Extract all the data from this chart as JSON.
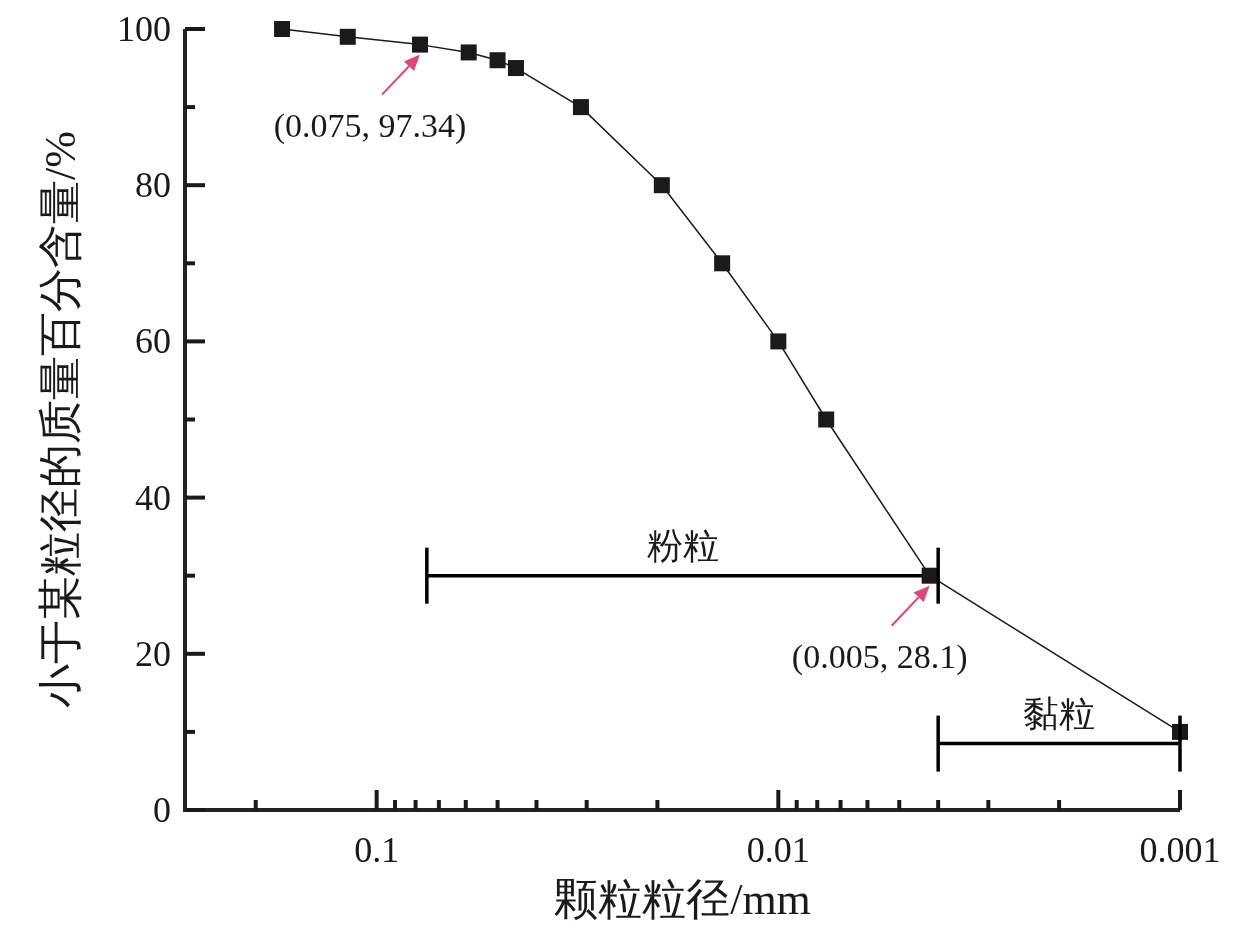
{
  "chart_data": {
    "type": "line",
    "xlabel": "颗粒粒径/mm",
    "ylabel": "小于某粒径的质量百分含量/%",
    "series": [
      {
        "x": [
          0.172,
          0.118,
          0.078,
          0.059,
          0.05,
          0.045,
          0.031,
          0.0195,
          0.0138,
          0.01,
          0.0076,
          0.0042,
          0.001
        ],
        "values": [
          100,
          99,
          98,
          97,
          96,
          95,
          90,
          80,
          70,
          60,
          50,
          30,
          10
        ],
        "color": "#1a1a1a",
        "marker": "square"
      },
      {
        "name": "粉粒",
        "x": [
          0.075,
          0.004
        ],
        "values": [
          30,
          30
        ],
        "color": "#000000",
        "marker": "none"
      },
      {
        "name": "黏粒",
        "x": [
          0.004,
          0.001
        ],
        "values": [
          8.5,
          8.5
        ],
        "color": "#000000",
        "marker": "none"
      }
    ],
    "line_style": "solid",
    "log": "x",
    "xlim": [
      0.3,
      0.001
    ],
    "xticks": [
      {
        "value": 0.2,
        "label": null
      },
      {
        "value": 0.1,
        "label": "0.1"
      },
      {
        "value": 0.09,
        "label": null
      },
      {
        "value": 0.08,
        "label": null
      },
      {
        "value": 0.07,
        "label": null
      },
      {
        "value": 0.06,
        "label": null
      },
      {
        "value": 0.05,
        "label": null
      },
      {
        "value": 0.04,
        "label": null
      },
      {
        "value": 0.03,
        "label": null
      },
      {
        "value": 0.02,
        "label": null
      },
      {
        "value": 0.01,
        "label": "0.01"
      },
      {
        "value": 0.009,
        "label": null
      },
      {
        "value": 0.008,
        "label": null
      },
      {
        "value": 0.007,
        "label": null
      },
      {
        "value": 0.006,
        "label": null
      },
      {
        "value": 0.005,
        "label": null
      },
      {
        "value": 0.004,
        "label": null
      },
      {
        "value": 0.003,
        "label": null
      },
      {
        "value": 0.002,
        "label": null
      },
      {
        "value": 0.001,
        "label": "0.001"
      }
    ],
    "ylim": [
      0,
      100
    ],
    "yticks": [
      0,
      {
        "value": 10,
        "label": null
      },
      20,
      {
        "value": 30,
        "label": null
      },
      40,
      {
        "value": 50,
        "label": null
      },
      60,
      {
        "value": 70,
        "label": null
      },
      80,
      {
        "value": 90,
        "label": null
      },
      100
    ],
    "annotations": [
      {
        "text": "(0.075, 97.34)",
        "x": 0.078,
        "y": 98
      },
      {
        "text": "(0.005, 28.1)",
        "x": 0.0042,
        "y": 30
      }
    ]
  }
}
